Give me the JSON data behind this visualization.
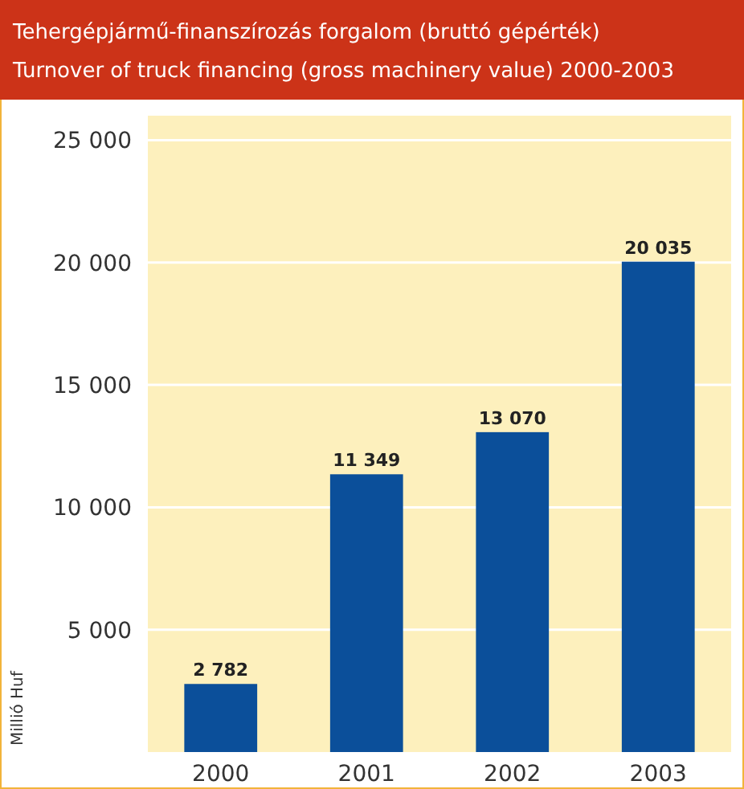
{
  "chart_data": {
    "type": "bar",
    "title": "Tehergépjármű-finanszírozás forgalom (bruttó gépérték)",
    "subtitle": "Turnover of truck financing (gross machinery value) 2000-2003",
    "ylabel": "Millió Huf",
    "categories": [
      "2000",
      "2001",
      "2002",
      "2003"
    ],
    "values": [
      2782,
      11349,
      13070,
      20035
    ],
    "value_labels": [
      "2 782",
      "11 349",
      "13 070",
      "20 035"
    ],
    "color": "#0b4f9a",
    "ylim": [
      0,
      26000
    ],
    "yticks": [
      {
        "value": 5000,
        "label": "5 000"
      },
      {
        "value": 10000,
        "label": "10 000"
      },
      {
        "value": 15000,
        "label": "15 000"
      },
      {
        "value": 20000,
        "label": "20 000"
      },
      {
        "value": 25000,
        "label": "25 000"
      }
    ],
    "grid": "y"
  }
}
